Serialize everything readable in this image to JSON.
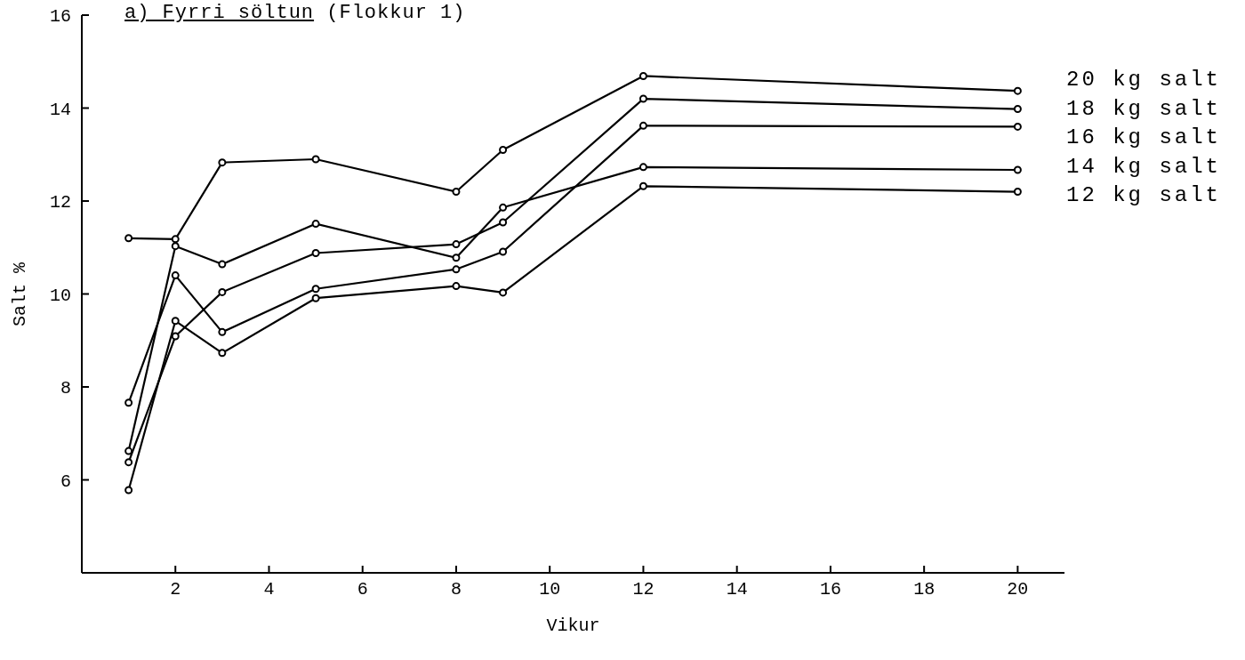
{
  "chart_data": {
    "type": "line",
    "title": "a) Fyrri söltun (Flokkur 1)",
    "xlabel": "Vikur",
    "ylabel": "Salt %",
    "x": [
      1,
      2,
      3,
      5,
      8,
      9,
      12,
      20
    ],
    "series": [
      {
        "name": "20 kg salt",
        "color": "#000000",
        "values": [
          11.2,
          11.18,
          12.83,
          12.9,
          12.2,
          13.1,
          14.69,
          14.37
        ]
      },
      {
        "name": "18 kg salt",
        "color": "#000000",
        "values": [
          6.38,
          9.09,
          10.04,
          10.88,
          11.07,
          11.54,
          14.2,
          13.98
        ]
      },
      {
        "name": "16 kg salt",
        "color": "#000000",
        "values": [
          7.66,
          10.4,
          9.18,
          10.11,
          10.53,
          10.91,
          13.62,
          13.6
        ]
      },
      {
        "name": "14 kg salt",
        "color": "#000000",
        "values": [
          6.62,
          11.03,
          10.64,
          11.51,
          10.78,
          11.86,
          12.73,
          12.67
        ]
      },
      {
        "name": "12 kg salt",
        "color": "#000000",
        "values": [
          5.78,
          9.42,
          8.73,
          9.91,
          10.17,
          10.03,
          12.32,
          12.2
        ]
      }
    ],
    "xlim": [
      0,
      21
    ],
    "xticks": [
      2,
      4,
      6,
      8,
      10,
      12,
      14,
      16,
      18,
      20
    ],
    "ylim": [
      4,
      16
    ],
    "yticks": [
      6,
      8,
      10,
      12,
      14,
      16
    ],
    "grid": false,
    "legend": false,
    "marker": "circle",
    "line_style": "solid"
  }
}
